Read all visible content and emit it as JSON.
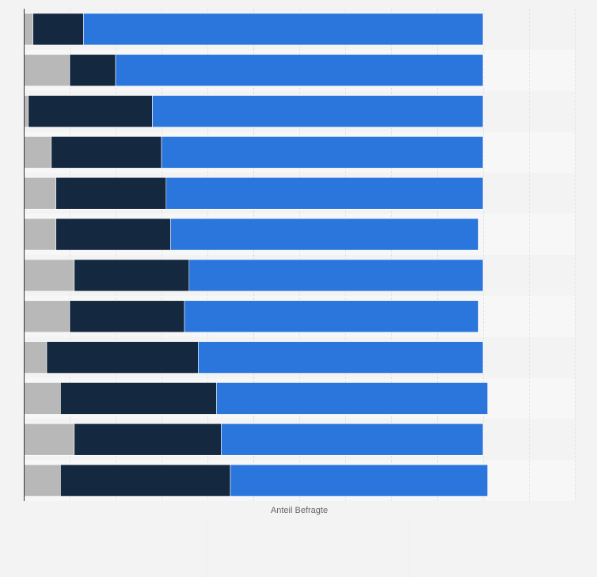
{
  "chart_data": {
    "type": "bar",
    "orientation": "horizontal",
    "stacked": true,
    "xlabel": "Anteil Befragte",
    "xlim": [
      0,
      1.2
    ],
    "grid": true,
    "categories": [
      "",
      "",
      "",
      "",
      "",
      "",
      "",
      "",
      "",
      "",
      "",
      ""
    ],
    "series": [
      {
        "color": "#b8b8b8",
        "values": [
          0.02,
          0.1,
          0.01,
          0.06,
          0.07,
          0.07,
          0.11,
          0.1,
          0.05,
          0.08,
          0.11,
          0.08
        ]
      },
      {
        "color": "#14283f",
        "values": [
          0.11,
          0.1,
          0.27,
          0.24,
          0.24,
          0.25,
          0.25,
          0.25,
          0.33,
          0.34,
          0.32,
          0.37
        ]
      },
      {
        "color": "#2a76dd",
        "values": [
          0.87,
          0.8,
          0.72,
          0.7,
          0.69,
          0.67,
          0.64,
          0.64,
          0.62,
          0.59,
          0.57,
          0.56
        ]
      }
    ]
  }
}
